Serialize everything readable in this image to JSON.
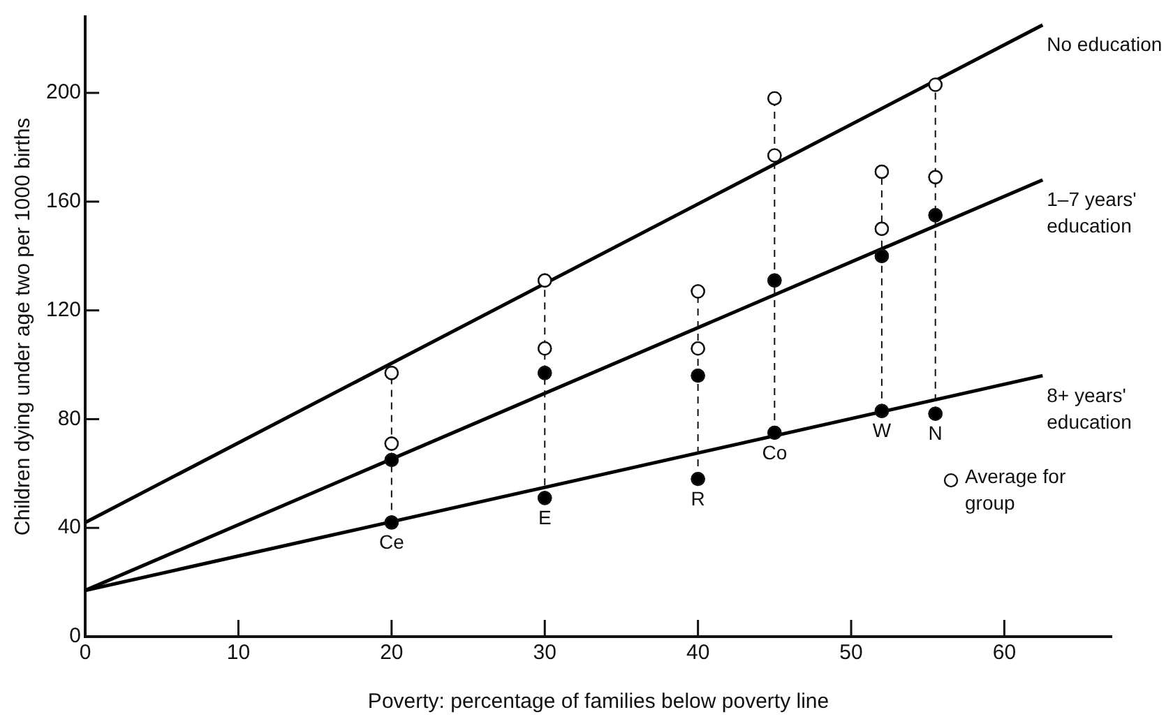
{
  "chart_data": {
    "type": "scatter",
    "xlabel": "Poverty: percentage of families below poverty line",
    "ylabel": "Children dying under age two per 1000 births",
    "xlim": [
      0,
      67
    ],
    "xticks": [
      0,
      10,
      20,
      30,
      40,
      50,
      60
    ],
    "ylim": [
      0,
      228
    ],
    "yticks": [
      0,
      40,
      80,
      120,
      160,
      200
    ],
    "grid": false,
    "legend": "right",
    "marker": "circle",
    "series": [
      {
        "type": "line",
        "name": "No education",
        "x": [
          0,
          62.5
        ],
        "values": [
          42,
          225
        ],
        "color": "#000000",
        "marker": "none"
      },
      {
        "type": "line",
        "name": "1–7 years' education",
        "x": [
          0,
          62.5
        ],
        "values": [
          17,
          168
        ],
        "color": "#000000",
        "marker": "none"
      },
      {
        "type": "line",
        "name": "8+ years' education",
        "x": [
          0,
          62.5
        ],
        "values": [
          17,
          96
        ],
        "color": "#000000",
        "marker": "none"
      },
      {
        "x": [
          20,
          30,
          40,
          45,
          52,
          55.5
        ],
        "values": [
          97,
          131,
          127,
          198,
          171,
          203
        ],
        "color": "#ffffff"
      },
      {
        "name": "Average for group",
        "x": [
          20,
          30,
          40,
          45,
          52,
          55.5
        ],
        "values": [
          71,
          106,
          106,
          177,
          150,
          169
        ],
        "color": "#ffffff"
      },
      {
        "x": [
          20,
          30,
          40,
          45,
          52,
          55.5
        ],
        "values": [
          65,
          97,
          96,
          131,
          140,
          155
        ],
        "color": "#000000"
      },
      {
        "x": [
          20,
          30,
          40,
          45,
          52,
          55.5
        ],
        "values": [
          42,
          51,
          58,
          75,
          83,
          82
        ],
        "color": "#000000"
      }
    ],
    "annotations": [
      {
        "text": "Ce",
        "x": 20,
        "y": 42
      },
      {
        "text": "E",
        "x": 30,
        "y": 51
      },
      {
        "text": "R",
        "x": 40,
        "y": 58
      },
      {
        "text": "Co",
        "x": 45,
        "y": 75
      },
      {
        "text": "W",
        "x": 52,
        "y": 83
      },
      {
        "text": "N",
        "x": 55.5,
        "y": 82
      }
    ]
  }
}
